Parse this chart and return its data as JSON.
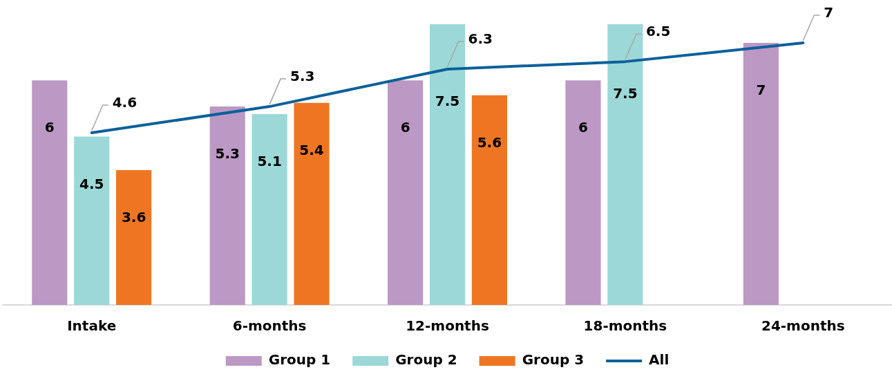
{
  "chart_data": {
    "type": "bar",
    "categories": [
      "Intake",
      "6-months",
      "12-months",
      "18-months",
      "24-months"
    ],
    "series": [
      {
        "name": "Group 1",
        "color": "#bc98c5",
        "values": [
          6,
          5.3,
          6,
          6,
          7
        ]
      },
      {
        "name": "Group 2",
        "color": "#9cd8d8",
        "values": [
          4.5,
          5.1,
          7.5,
          7.5,
          null
        ]
      },
      {
        "name": "Group 3",
        "color": "#ee7623",
        "values": [
          3.6,
          5.4,
          5.6,
          null,
          null
        ]
      },
      {
        "name": "All",
        "type": "line",
        "color": "#0b609a",
        "values": [
          4.6,
          5.3,
          6.3,
          6.5,
          7
        ]
      }
    ],
    "ylim": [
      0,
      7.5
    ],
    "tick_labels": "x",
    "grid": false,
    "legend": "bottom",
    "data_labels": true,
    "marker": "none"
  }
}
